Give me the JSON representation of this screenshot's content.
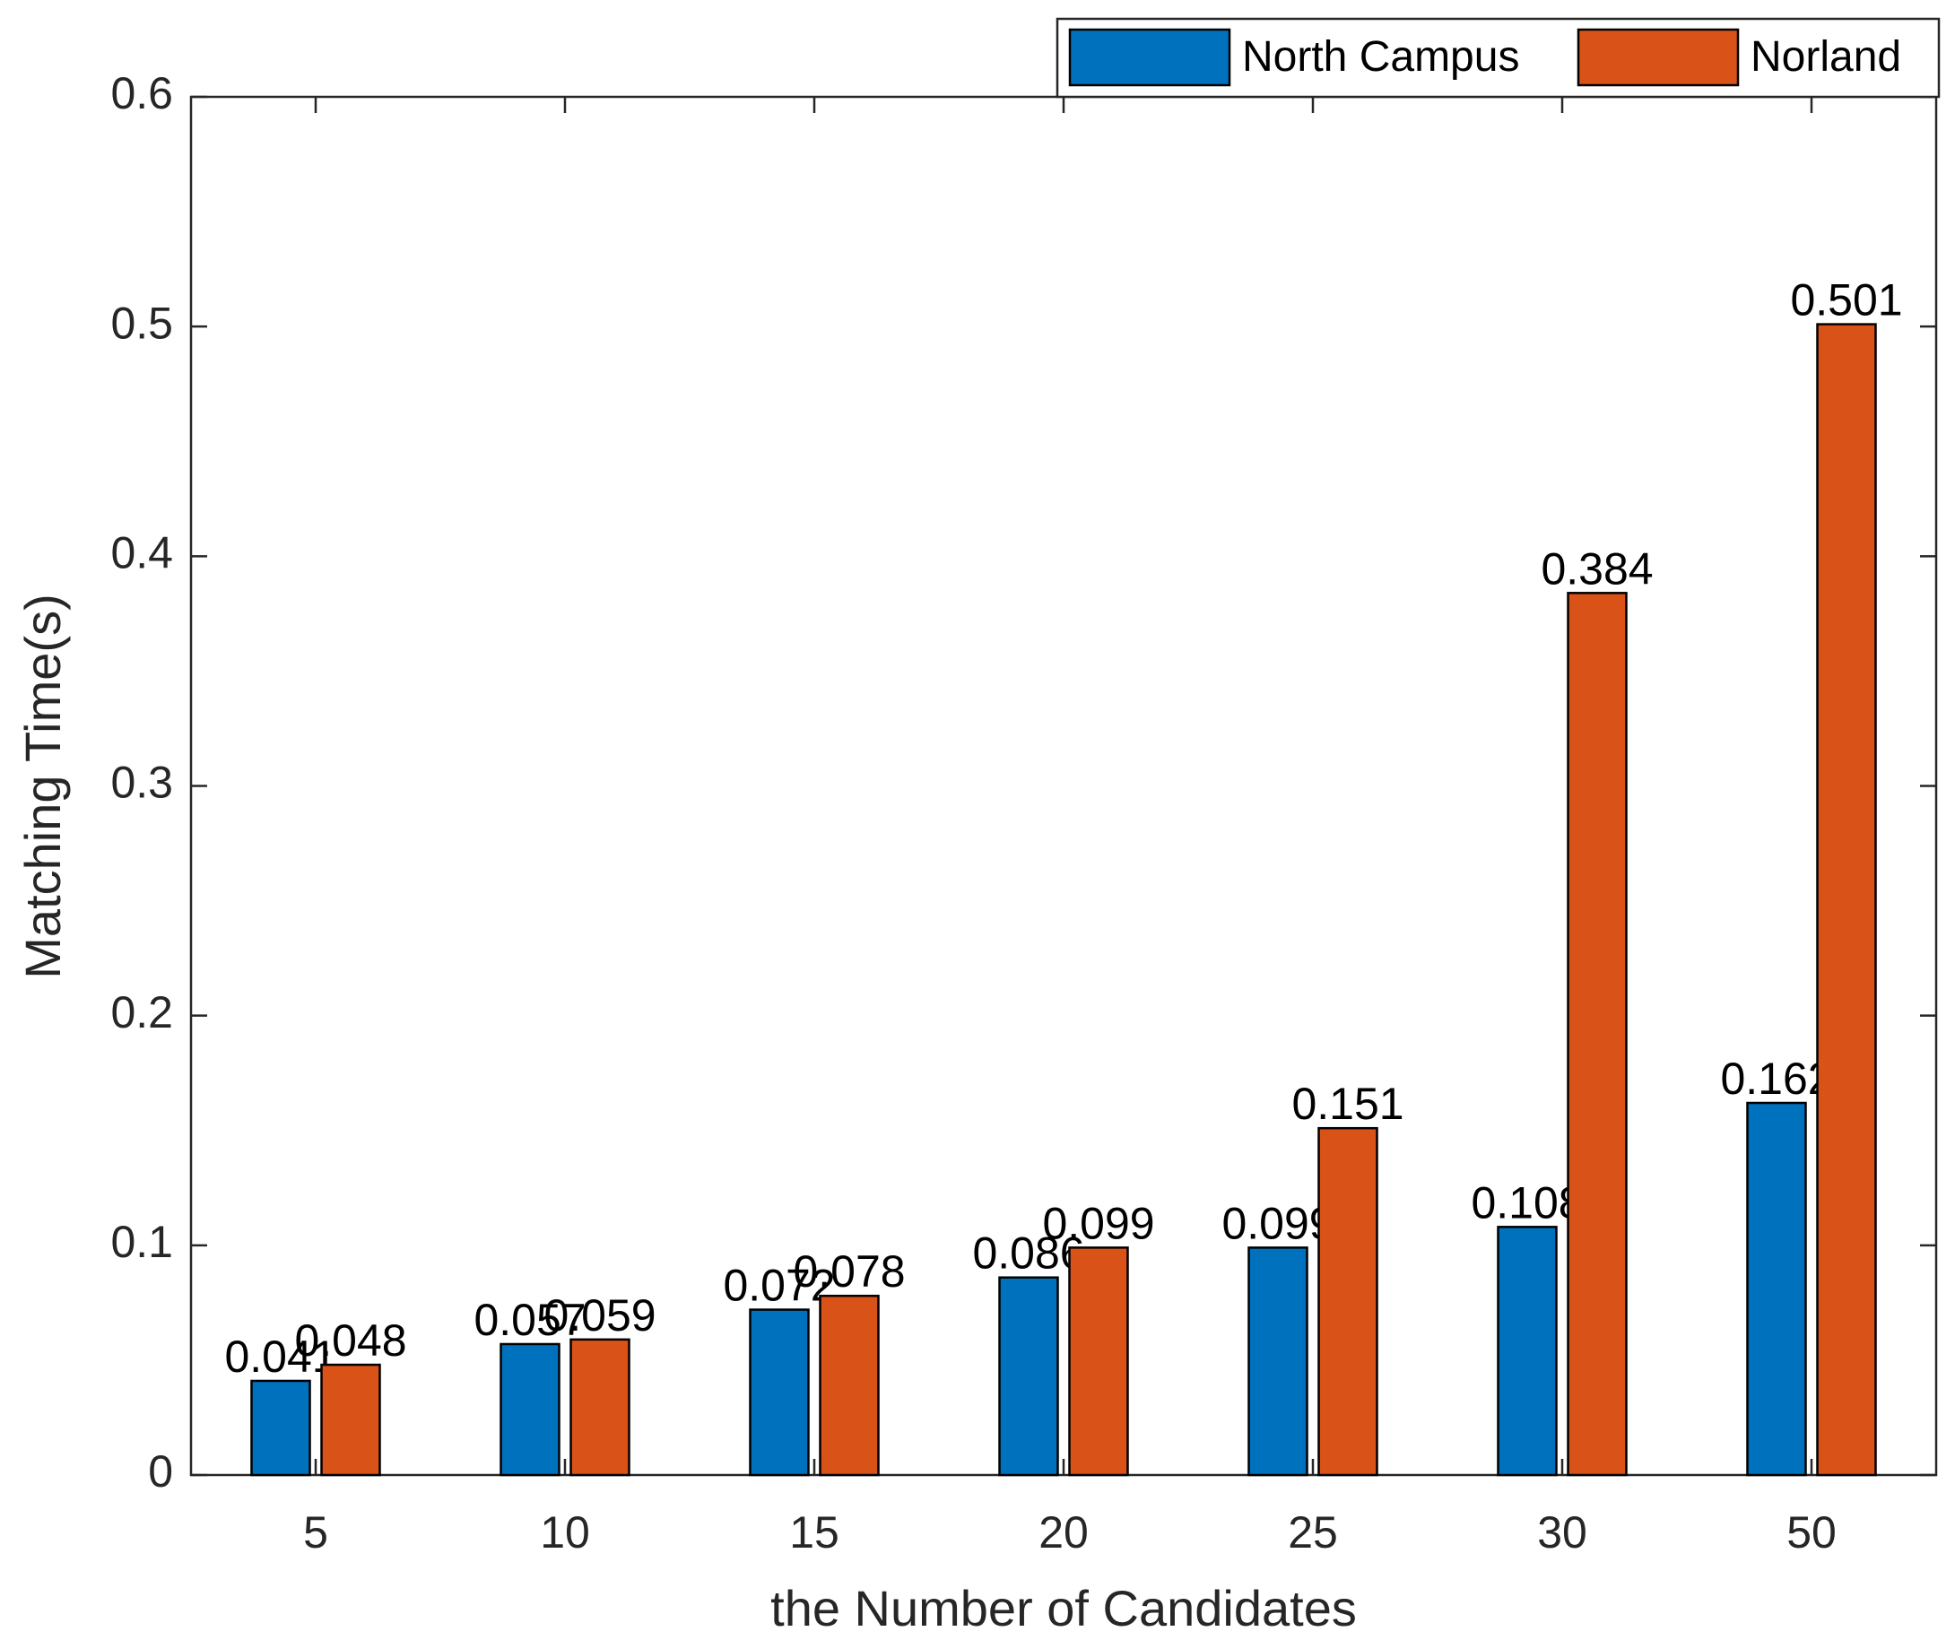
{
  "chart_data": {
    "type": "bar",
    "x_label": "the Number of Candidates",
    "y_label": "Matching Time(s)",
    "categories": [
      "5",
      "10",
      "15",
      "20",
      "25",
      "30",
      "50"
    ],
    "series": [
      {
        "name": "North Campus",
        "color": "#0072bd",
        "values": [
          0.041,
          0.057,
          0.072,
          0.086,
          0.099,
          0.108,
          0.162
        ]
      },
      {
        "name": "Norland",
        "color": "#d95319",
        "values": [
          0.048,
          0.059,
          0.078,
          0.099,
          0.151,
          0.384,
          0.501
        ]
      }
    ],
    "ylim": [
      0,
      0.6
    ],
    "yticks": [
      0,
      0.1,
      0.2,
      0.3,
      0.4,
      0.5,
      0.6
    ],
    "grid": false,
    "legend": "top-right"
  }
}
